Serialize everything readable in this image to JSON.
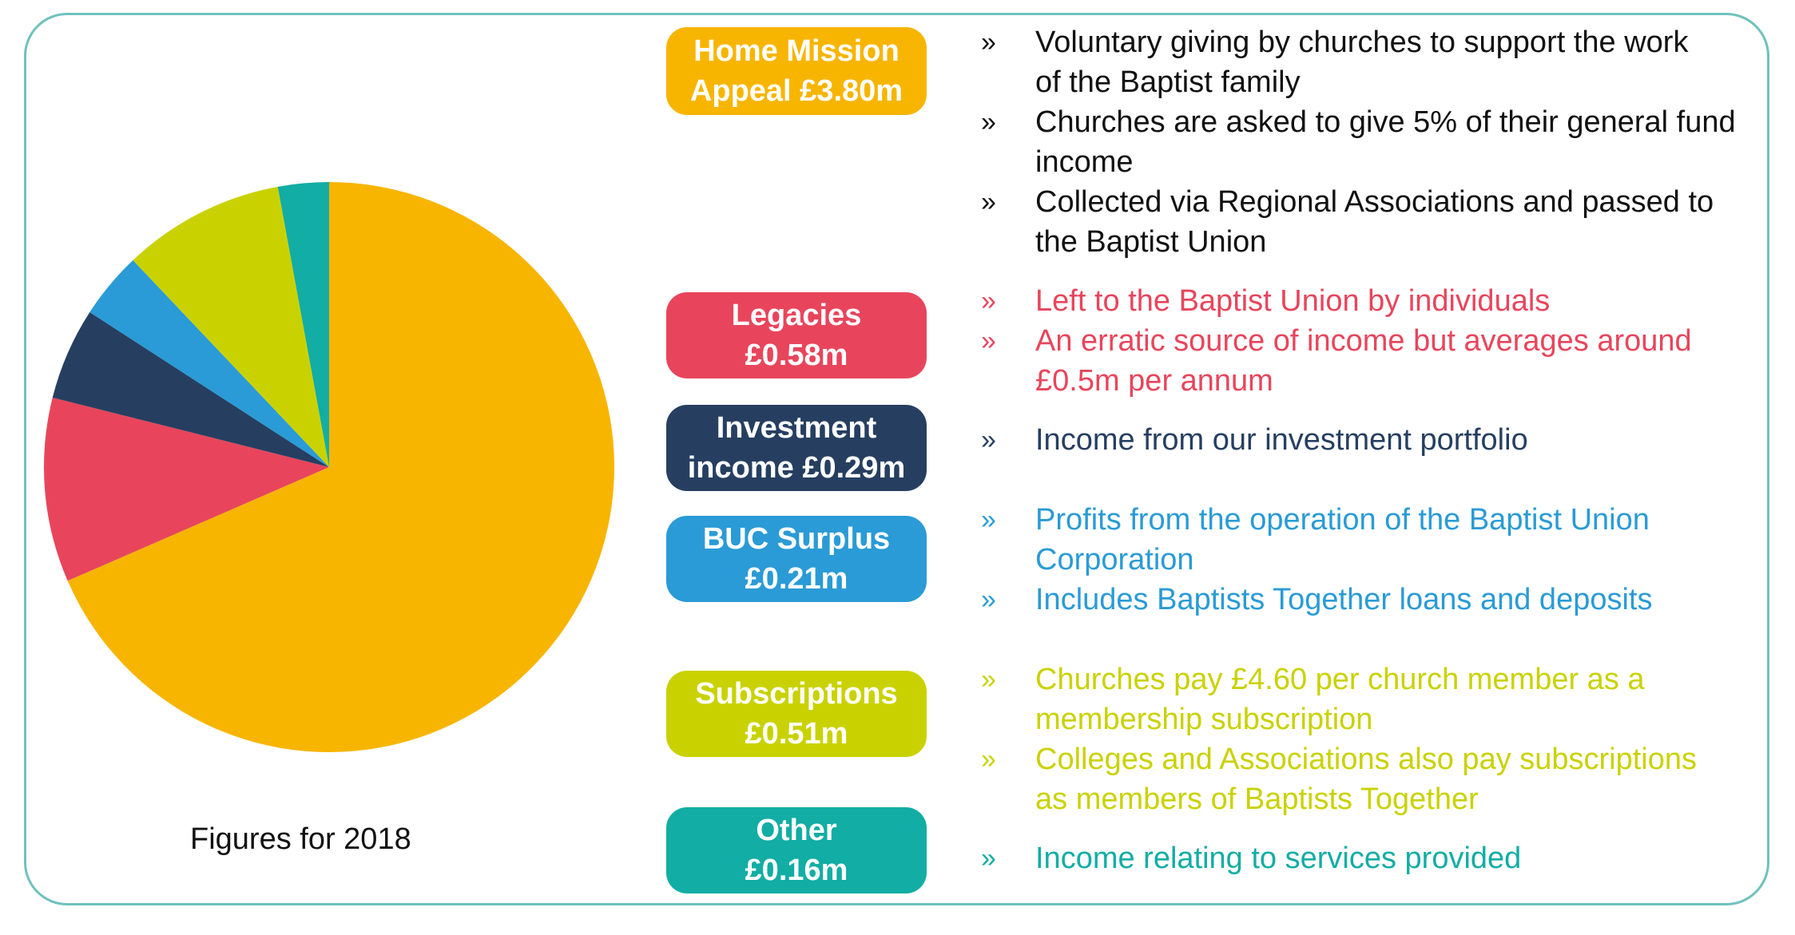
{
  "chart_data": {
    "type": "pie",
    "unit": "£m",
    "slices": [
      {
        "label": "Home Mission Appeal",
        "value": 3.8,
        "color": "#f7b500"
      },
      {
        "label": "Legacies",
        "value": 0.58,
        "color": "#e8455c"
      },
      {
        "label": "Investment income",
        "value": 0.29,
        "color": "#263f61"
      },
      {
        "label": "BUC Surplus",
        "value": 0.21,
        "color": "#2a9bd6"
      },
      {
        "label": "Subscriptions",
        "value": 0.51,
        "color": "#c9d200"
      },
      {
        "label": "Other",
        "value": 0.16,
        "color": "#12ada4"
      }
    ]
  },
  "caption": "Figures for 2018",
  "colors": {
    "border": "#6fc1bd",
    "bullet_dark": "#111111"
  },
  "categories": [
    {
      "badge_line1": "Home Mission",
      "badge_line2": "Appeal £3.80m",
      "color": "#f7b500",
      "text_color": "#111111",
      "bullets": [
        {
          "mark": "»",
          "line1": "Voluntary giving by churches to support the work",
          "line2": "of the Baptist family"
        },
        {
          "mark": "»",
          "line1": "Churches are asked to give 5% of their general fund",
          "line2": "income"
        },
        {
          "mark": "»",
          "line1": "Collected via Regional Associations and passed to",
          "line2": "the Baptist Union"
        }
      ]
    },
    {
      "badge_line1": "Legacies",
      "badge_line2": "£0.58m",
      "color": "#e8455c",
      "text_color": "#e8455c",
      "bullets": [
        {
          "mark": "»",
          "line1": "Left to the Baptist Union by individuals",
          "line2": ""
        },
        {
          "mark": "»",
          "line1": "An erratic source of income but averages around",
          "line2": "£0.5m per annum"
        }
      ]
    },
    {
      "badge_line1": "Investment",
      "badge_line2": "income £0.29m",
      "color": "#263f61",
      "text_color": "#263f61",
      "bullets": [
        {
          "mark": "»",
          "line1": "Income from our investment portfolio",
          "line2": ""
        }
      ]
    },
    {
      "badge_line1": "BUC Surplus",
      "badge_line2": "£0.21m",
      "color": "#2a9bd6",
      "text_color": "#2a9bd6",
      "bullets": [
        {
          "mark": "»",
          "line1": "Profits from the operation of the Baptist Union",
          "line2": "Corporation"
        },
        {
          "mark": "»",
          "line1": "Includes Baptists Together loans and deposits",
          "line2": ""
        }
      ]
    },
    {
      "badge_line1": "Subscriptions",
      "badge_line2": "£0.51m",
      "color": "#c9d200",
      "text_color": "#c9d200",
      "bullets": [
        {
          "mark": "»",
          "line1": "Churches pay £4.60 per church member as a",
          "line2": "membership subscription"
        },
        {
          "mark": "»",
          "line1": "Colleges and Associations also pay subscriptions",
          "line2": "as members of Baptists Together"
        }
      ]
    },
    {
      "badge_line1": "Other",
      "badge_line2": "£0.16m",
      "color": "#12ada4",
      "text_color": "#12ada4",
      "bullets": [
        {
          "mark": "»",
          "line1": "Income relating to services provided",
          "line2": ""
        }
      ]
    }
  ]
}
